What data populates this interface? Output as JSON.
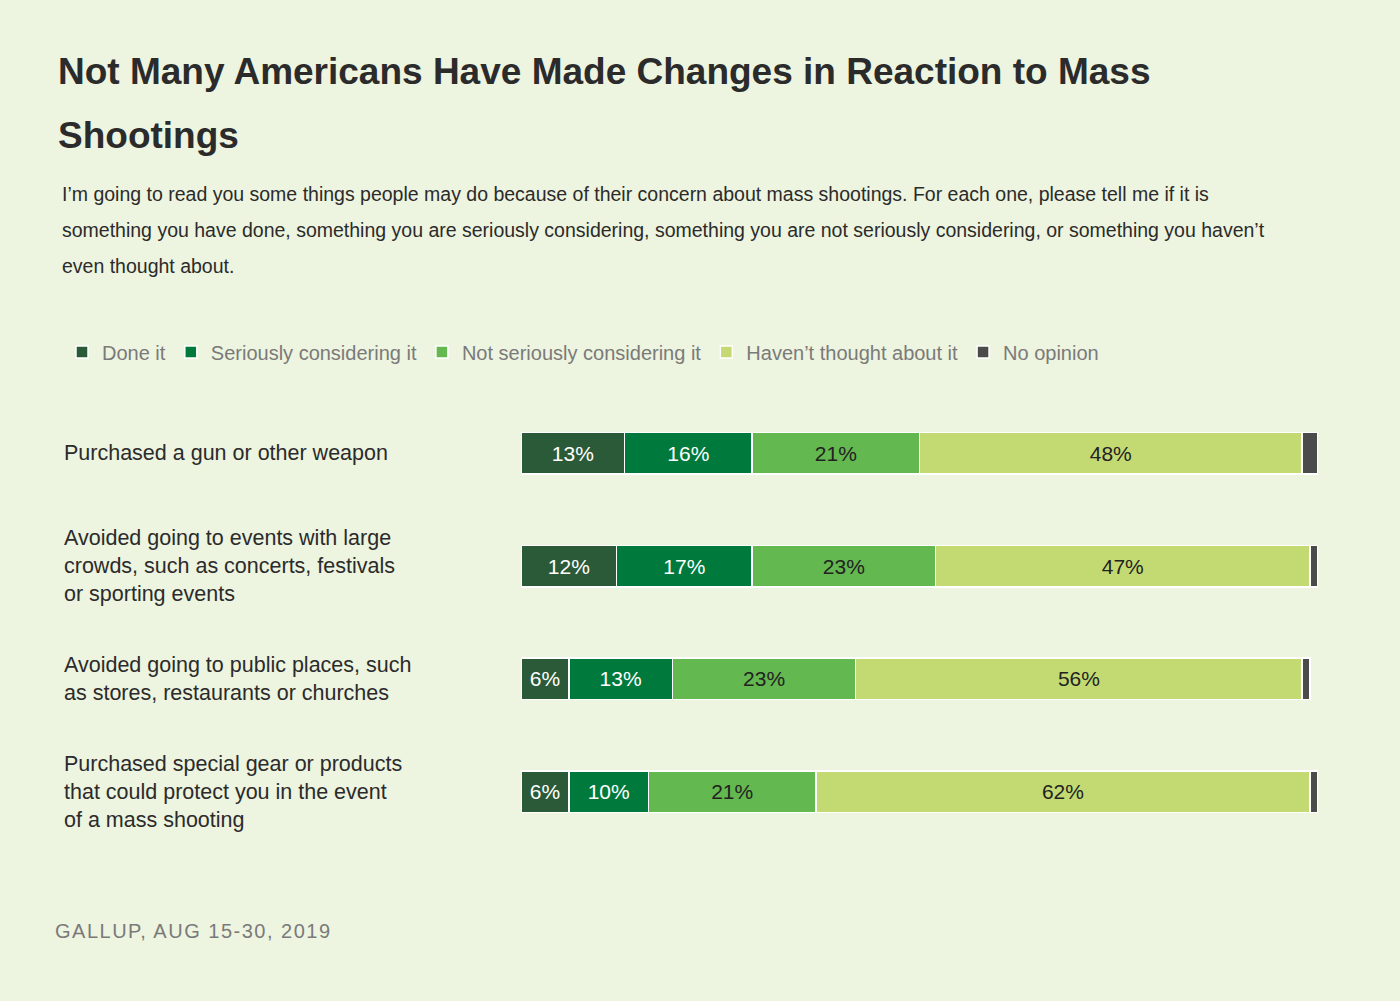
{
  "chart_data": {
    "type": "bar",
    "title": "Not Many Americans Have Made Changes in Reaction to Mass Shootings",
    "subtitle": "I’m going to read you some things people may do because of their concern about mass shootings. For each one, please tell me if it is something you have done, something you are seriously considering, something you are not seriously considering, or something you haven’t even thought about.",
    "source": "GALLUP, AUG 15-30, 2019",
    "orientation": "horizontal",
    "stacked": true,
    "data_labels": true,
    "legend": "top-left",
    "xlim": [
      0,
      100
    ],
    "categories": [
      "Purchased a gun or other weapon",
      "Avoided going to events with large crowds, such as concerts, festivals or sporting events",
      "Avoided going to public places, such as stores, restaurants or churches",
      "Purchased special gear or products that could protect you in the event of a mass shooting"
    ],
    "series": [
      {
        "name": "Done it",
        "color": "#2b5a39",
        "values": [
          13,
          12,
          6,
          6
        ],
        "value_labels": [
          "13%",
          "12%",
          "6%",
          "6%"
        ]
      },
      {
        "name": "Seriously considering it",
        "color": "#007a3c",
        "values": [
          16,
          17,
          13,
          10
        ],
        "value_labels": [
          "16%",
          "17%",
          "13%",
          "10%"
        ]
      },
      {
        "name": "Not seriously considering it",
        "color": "#63b84f",
        "values": [
          21,
          23,
          23,
          21
        ],
        "value_labels": [
          "21%",
          "23%",
          "23%",
          "21%"
        ]
      },
      {
        "name": "Haven’t thought about it",
        "color": "#c3da73",
        "values": [
          48,
          47,
          56,
          62
        ],
        "value_labels": [
          "48%",
          "47%",
          "56%",
          "62%"
        ]
      },
      {
        "name": "No opinion",
        "color": "#4b4b4b",
        "values": [
          2,
          1,
          1,
          1
        ]
      }
    ]
  }
}
